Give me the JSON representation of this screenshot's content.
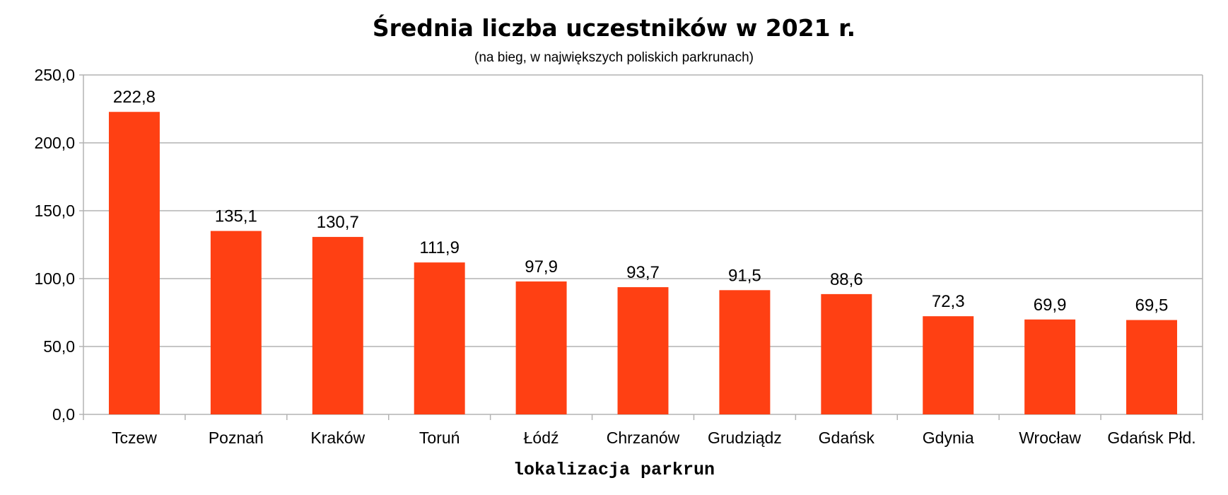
{
  "chart_data": {
    "type": "bar",
    "title": "Średnia liczba uczestników w 2021 r.",
    "subtitle": "(na bieg, w największych poliskich parkrunach)",
    "xlabel": "lokalizacja parkrun",
    "ylabel": "",
    "categories": [
      "Tczew",
      "Poznań",
      "Kraków",
      "Toruń",
      "Łódź",
      "Chrzanów",
      "Grudziądz",
      "Gdańsk",
      "Gdynia",
      "Wrocław",
      "Gdańsk Płd."
    ],
    "values": [
      222.8,
      135.1,
      130.7,
      111.9,
      97.9,
      93.7,
      91.5,
      88.6,
      72.3,
      69.9,
      69.5
    ],
    "value_labels": [
      "222,8",
      "135,1",
      "130,7",
      "111,9",
      "97,9",
      "93,7",
      "91,5",
      "88,6",
      "72,3",
      "69,9",
      "69,5"
    ],
    "ylim": [
      0,
      250
    ],
    "yticks": [
      0,
      50,
      100,
      150,
      200,
      250
    ],
    "ytick_labels": [
      "0,0",
      "50,0",
      "100,0",
      "150,0",
      "200,0",
      "250,0"
    ],
    "grid": true,
    "legend": "none",
    "colors": {
      "bar": "#ff4013",
      "grid": "#b3b3b3",
      "axis": "#b3b3b3"
    }
  }
}
